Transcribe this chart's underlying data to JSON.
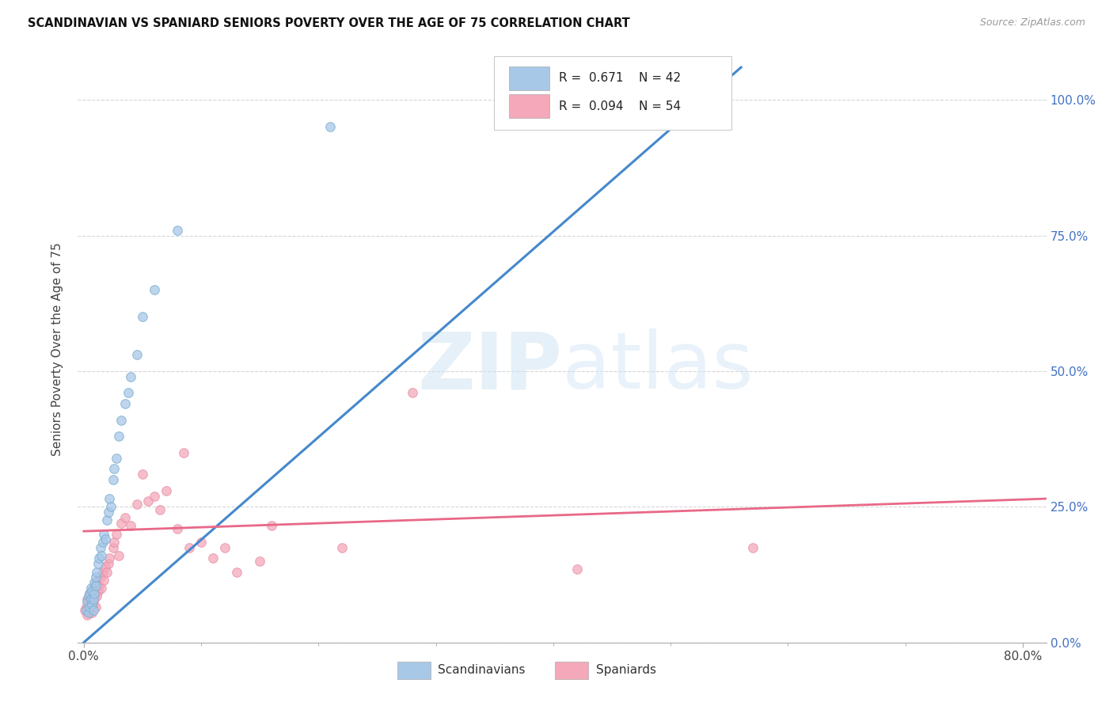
{
  "title": "SCANDINAVIAN VS SPANIARD SENIORS POVERTY OVER THE AGE OF 75 CORRELATION CHART",
  "source": "Source: ZipAtlas.com",
  "ylabel": "Seniors Poverty Over the Age of 75",
  "ylim": [
    0.0,
    1.08
  ],
  "xlim": [
    -0.005,
    0.82
  ],
  "background_color": "#ffffff",
  "legend": {
    "blue_r": "0.671",
    "blue_n": "42",
    "pink_r": "0.094",
    "pink_n": "54"
  },
  "scandinavians_x": [
    0.002,
    0.003,
    0.004,
    0.004,
    0.005,
    0.005,
    0.006,
    0.006,
    0.007,
    0.007,
    0.008,
    0.008,
    0.009,
    0.009,
    0.01,
    0.01,
    0.011,
    0.012,
    0.013,
    0.014,
    0.015,
    0.016,
    0.017,
    0.018,
    0.02,
    0.021,
    0.022,
    0.023,
    0.025,
    0.026,
    0.028,
    0.03,
    0.032,
    0.035,
    0.038,
    0.04,
    0.045,
    0.05,
    0.06,
    0.08,
    0.21,
    0.415
  ],
  "scandinavians_y": [
    0.06,
    0.075,
    0.055,
    0.085,
    0.065,
    0.09,
    0.08,
    0.1,
    0.07,
    0.095,
    0.06,
    0.08,
    0.09,
    0.11,
    0.105,
    0.12,
    0.13,
    0.145,
    0.155,
    0.175,
    0.16,
    0.185,
    0.2,
    0.19,
    0.225,
    0.24,
    0.265,
    0.25,
    0.3,
    0.32,
    0.34,
    0.38,
    0.41,
    0.44,
    0.46,
    0.49,
    0.53,
    0.6,
    0.65,
    0.76,
    0.95,
    1.0
  ],
  "spaniards_x": [
    0.001,
    0.002,
    0.003,
    0.003,
    0.004,
    0.004,
    0.005,
    0.005,
    0.006,
    0.006,
    0.007,
    0.007,
    0.008,
    0.008,
    0.009,
    0.01,
    0.01,
    0.011,
    0.012,
    0.013,
    0.014,
    0.015,
    0.016,
    0.017,
    0.018,
    0.02,
    0.021,
    0.022,
    0.025,
    0.026,
    0.028,
    0.03,
    0.032,
    0.035,
    0.04,
    0.045,
    0.05,
    0.055,
    0.06,
    0.065,
    0.07,
    0.08,
    0.085,
    0.09,
    0.1,
    0.11,
    0.12,
    0.13,
    0.15,
    0.16,
    0.22,
    0.28,
    0.42,
    0.57
  ],
  "spaniards_y": [
    0.06,
    0.065,
    0.05,
    0.08,
    0.055,
    0.075,
    0.06,
    0.09,
    0.07,
    0.085,
    0.055,
    0.095,
    0.07,
    0.1,
    0.08,
    0.065,
    0.11,
    0.085,
    0.095,
    0.105,
    0.12,
    0.1,
    0.13,
    0.115,
    0.14,
    0.13,
    0.145,
    0.155,
    0.175,
    0.185,
    0.2,
    0.16,
    0.22,
    0.23,
    0.215,
    0.255,
    0.31,
    0.26,
    0.27,
    0.245,
    0.28,
    0.21,
    0.35,
    0.175,
    0.185,
    0.155,
    0.175,
    0.13,
    0.15,
    0.215,
    0.175,
    0.46,
    0.135,
    0.175
  ],
  "blue_line_x": [
    0.0,
    0.56
  ],
  "blue_line_y": [
    0.0,
    1.06
  ],
  "pink_line_x": [
    0.0,
    0.82
  ],
  "pink_line_y": [
    0.205,
    0.265
  ],
  "dot_size": 70,
  "blue_fill": "#a8c8e8",
  "blue_edge": "#7aaed0",
  "pink_fill": "#f4a8ba",
  "pink_edge": "#e890a8",
  "blue_line_color": "#4488cc",
  "pink_line_color": "#e86888",
  "grid_color": "#cccccc",
  "right_tick_color": "#4472c4",
  "ytick_positions": [
    0.0,
    0.25,
    0.5,
    0.75,
    1.0
  ],
  "ytick_labels_right": [
    "0.0%",
    "25.0%",
    "50.0%",
    "75.0%",
    "100.0%"
  ],
  "xtick_positions": [
    0.0,
    0.8
  ],
  "xtick_labels": [
    "0.0%",
    "80.0%"
  ]
}
